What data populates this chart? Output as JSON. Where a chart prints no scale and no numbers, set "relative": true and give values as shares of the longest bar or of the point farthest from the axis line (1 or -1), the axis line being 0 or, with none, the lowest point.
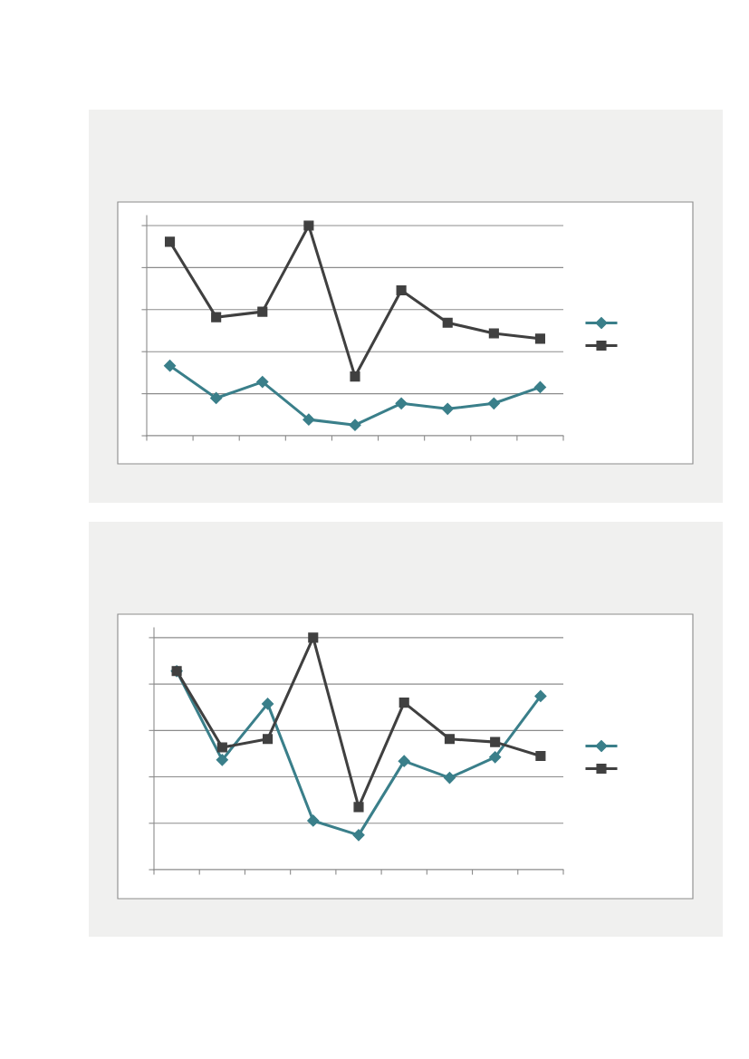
{
  "chart_data": [
    {
      "type": "line",
      "relative": true,
      "categories": [
        null,
        null,
        null,
        null,
        null,
        null,
        null,
        null,
        null
      ],
      "grid": "y",
      "series": [
        {
          "color": "#3a7f8a",
          "marker": "diamond",
          "values": [
            0.333,
            0.179,
            0.256,
            0.077,
            0.051,
            0.154,
            0.128,
            0.154,
            0.231
          ]
        },
        {
          "color": "#404040",
          "marker": "square",
          "values": [
            0.923,
            0.564,
            0.59,
            1,
            0.282,
            0.692,
            0.538,
            0.487,
            0.462
          ]
        }
      ]
    },
    {
      "type": "line",
      "relative": true,
      "categories": [
        null,
        null,
        null,
        null,
        null,
        null,
        null,
        null,
        null
      ],
      "grid": "y",
      "series": [
        {
          "color": "#3a7f8a",
          "marker": "diamond",
          "values": [
            0.856,
            0.473,
            0.715,
            0.211,
            0.149,
            0.468,
            0.396,
            0.485,
            0.748
          ]
        },
        {
          "color": "#404040",
          "marker": "square",
          "values": [
            0.856,
            0.527,
            0.563,
            1,
            0.27,
            0.72,
            0.563,
            0.55,
            0.49
          ]
        }
      ]
    }
  ]
}
